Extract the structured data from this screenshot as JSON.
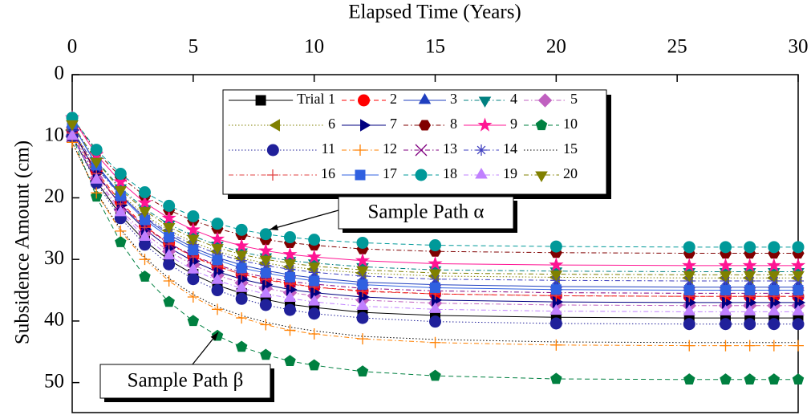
{
  "chart_data": {
    "type": "line",
    "x_label": "Elapsed Time (Years)",
    "y_label": "Subsidence Amount (cm)",
    "xlim": [
      0,
      30
    ],
    "xticks": [
      0,
      5,
      10,
      15,
      20,
      25,
      30
    ],
    "ylim": [
      0,
      55
    ],
    "yticks": [
      0,
      10,
      20,
      30,
      40,
      50
    ],
    "y_inverted": true,
    "x_axis_position": "top",
    "x": [
      0,
      1,
      2,
      3,
      4,
      5,
      6,
      7,
      8,
      9,
      10,
      12,
      15,
      20,
      25.5,
      27,
      28,
      29,
      30
    ],
    "annotations": [
      "Sample Path α",
      "Sample Path β"
    ],
    "series": [
      {
        "name": "Trial 1",
        "color": "#000000",
        "marker": "square",
        "style": "solid",
        "values": [
          10,
          17.3,
          22.8,
          27.0,
          30.1,
          32.4,
          34.2,
          35.5,
          36.5,
          37.3,
          37.8,
          38.6,
          39.1,
          39.4,
          39.5,
          39.5,
          39.5,
          39.5,
          39.5
        ]
      },
      {
        "name": "2",
        "color": "#ff0000",
        "marker": "circle",
        "style": "dash",
        "values": [
          9,
          15.7,
          20.7,
          24.6,
          27.4,
          29.5,
          31.1,
          32.4,
          33.2,
          33.9,
          34.5,
          35.1,
          35.6,
          35.9,
          36,
          36,
          36,
          36,
          36
        ]
      },
      {
        "name": "3",
        "color": "#1f3fbf",
        "marker": "triangle-up",
        "style": "solid",
        "values": [
          8,
          14.6,
          19.5,
          23.3,
          26.0,
          28.1,
          29.7,
          30.9,
          31.8,
          32.5,
          33.0,
          33.7,
          34.1,
          34.4,
          34.5,
          34.5,
          34.5,
          34.5,
          34.5
        ]
      },
      {
        "name": "4",
        "color": "#008080",
        "marker": "triangle-down",
        "style": "dashdot",
        "values": [
          8,
          14.0,
          18.4,
          21.8,
          24.3,
          26.2,
          27.7,
          28.8,
          29.6,
          30.2,
          30.6,
          31.2,
          31.7,
          31.9,
          32,
          32,
          32,
          32,
          32
        ]
      },
      {
        "name": "5",
        "color": "#c060c0",
        "marker": "diamond",
        "style": "dashdot",
        "values": [
          10,
          16.8,
          22.0,
          25.8,
          28.7,
          30.9,
          32.6,
          33.8,
          34.7,
          35.4,
          35.9,
          36.6,
          37.1,
          37.4,
          37.5,
          37.5,
          37.5,
          37.5,
          37.5
        ]
      },
      {
        "name": "6",
        "color": "#808000",
        "marker": "triangle-left",
        "style": "dot",
        "values": [
          9,
          15.0,
          19.4,
          22.8,
          25.3,
          27.2,
          28.7,
          29.8,
          30.6,
          31.2,
          31.6,
          32.2,
          32.7,
          32.9,
          33,
          33,
          33,
          33,
          33
        ]
      },
      {
        "name": "7",
        "color": "#000080",
        "marker": "triangle-right",
        "style": "solid",
        "values": [
          9,
          16.0,
          21.2,
          25.1,
          28.1,
          30.3,
          32.0,
          33.2,
          34.1,
          34.9,
          35.4,
          36.1,
          36.6,
          36.9,
          37,
          37,
          37,
          37,
          37
        ]
      },
      {
        "name": "8",
        "color": "#800000",
        "marker": "hexagon",
        "style": "dashdot",
        "values": [
          7,
          12.5,
          16.6,
          19.7,
          22.0,
          23.7,
          25.0,
          26.0,
          26.8,
          27.3,
          27.7,
          28.3,
          28.7,
          28.9,
          29,
          29,
          29,
          29,
          29
        ]
      },
      {
        "name": "9",
        "color": "#ff1493",
        "marker": "star",
        "style": "solid",
        "values": [
          7,
          13.0,
          17.4,
          20.8,
          23.3,
          25.2,
          26.7,
          27.8,
          28.6,
          29.2,
          29.6,
          30.2,
          30.7,
          30.9,
          31,
          31,
          31,
          31,
          31
        ]
      },
      {
        "name": "10",
        "color": "#008040",
        "marker": "pentagon",
        "style": "dash",
        "values": [
          10,
          19.8,
          27.2,
          32.8,
          36.9,
          40.0,
          42.4,
          44.2,
          45.5,
          46.5,
          47.2,
          48.2,
          48.9,
          49.4,
          49.5,
          49.5,
          49.5,
          49.5,
          49.5
        ]
      },
      {
        "name": "11",
        "color": "#20209a",
        "marker": "circle",
        "style": "dot",
        "values": [
          10,
          17.6,
          23.3,
          27.6,
          30.8,
          33.2,
          35.0,
          36.4,
          37.4,
          38.2,
          38.8,
          39.5,
          40.1,
          40.4,
          40.5,
          40.5,
          40.5,
          40.5,
          40.5
        ]
      },
      {
        "name": "12",
        "color": "#ff8000",
        "marker": "plus",
        "style": "dashdot",
        "values": [
          11,
          19.2,
          25.4,
          30.0,
          33.5,
          36.1,
          38.1,
          39.5,
          40.6,
          41.5,
          42.1,
          42.9,
          43.5,
          43.9,
          44,
          44,
          44,
          44,
          44
        ]
      },
      {
        "name": "13",
        "color": "#800080",
        "marker": "cross",
        "style": "dashdot",
        "values": [
          10,
          16.3,
          21.1,
          24.7,
          27.4,
          29.4,
          30.9,
          32.1,
          32.9,
          33.6,
          34.0,
          34.7,
          35.1,
          35.4,
          35.5,
          35.5,
          35.5,
          35.5,
          35.5
        ]
      },
      {
        "name": "14",
        "color": "#4040c0",
        "marker": "asterisk",
        "style": "dashdot",
        "values": [
          9,
          15.1,
          19.7,
          23.1,
          25.7,
          27.6,
          29.1,
          30.2,
          31.0,
          31.6,
          32.1,
          32.7,
          33.2,
          33.4,
          33.5,
          33.5,
          33.5,
          33.5,
          33.5
        ]
      },
      {
        "name": "15",
        "color": "#000000",
        "marker": "none",
        "style": "dot",
        "values": [
          11,
          19.1,
          25.1,
          29.7,
          33.1,
          35.7,
          37.7,
          39.1,
          40.2,
          41.0,
          41.6,
          42.5,
          43.0,
          43.4,
          43.5,
          43.5,
          43.5,
          43.5,
          43.5
        ]
      },
      {
        "name": "16",
        "color": "#e04040",
        "marker": "plus",
        "style": "dashdot",
        "values": [
          9.5,
          16.1,
          21.0,
          24.8,
          27.5,
          29.6,
          31.2,
          32.4,
          33.3,
          34.0,
          34.5,
          35.2,
          35.6,
          35.9,
          36,
          36,
          36,
          36,
          36
        ]
      },
      {
        "name": "17",
        "color": "#3060e0",
        "marker": "square",
        "style": "solid",
        "values": [
          8,
          14.7,
          19.7,
          23.6,
          26.4,
          28.5,
          30.1,
          31.4,
          32.2,
          32.9,
          33.5,
          34.1,
          34.6,
          34.9,
          35,
          35,
          35,
          35,
          35
        ]
      },
      {
        "name": "18",
        "color": "#009999",
        "marker": "circle",
        "style": "dash",
        "values": [
          7,
          12.2,
          16.1,
          19.1,
          21.3,
          23.0,
          24.2,
          25.2,
          25.9,
          26.4,
          26.8,
          27.3,
          27.7,
          27.9,
          28,
          28,
          28,
          28,
          28
        ]
      },
      {
        "name": "19",
        "color": "#c080ff",
        "marker": "triangle-up",
        "style": "dashdot",
        "values": [
          10,
          17.1,
          22.4,
          26.4,
          29.4,
          31.7,
          33.4,
          34.7,
          35.6,
          36.3,
          36.9,
          37.6,
          38.1,
          38.4,
          38.5,
          38.5,
          38.5,
          38.5,
          38.5
        ]
      },
      {
        "name": "20",
        "color": "#808000",
        "marker": "triangle-down",
        "style": "dashdot",
        "values": [
          8,
          14.1,
          18.7,
          22.1,
          24.7,
          26.6,
          28.1,
          29.2,
          30.0,
          30.6,
          31.1,
          31.7,
          32.2,
          32.4,
          32.5,
          32.5,
          32.5,
          32.5,
          32.5
        ]
      }
    ]
  }
}
